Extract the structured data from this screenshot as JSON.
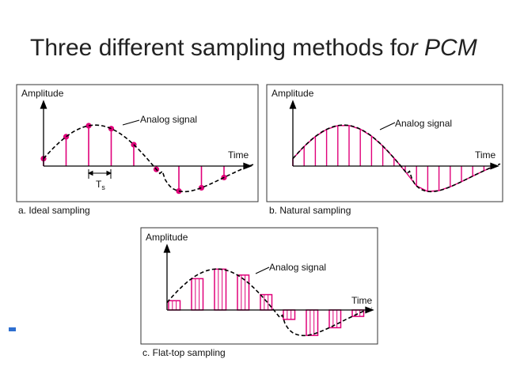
{
  "slide": {
    "title_main": "Three different sampling methods fo",
    "title_italic": "r PCM"
  },
  "panels": {
    "ideal": {
      "amplitude": "Amplitude",
      "time": "Time",
      "analog": "Analog signal",
      "period_main": "T",
      "period_sub": "s",
      "caption": "a. Ideal sampling"
    },
    "natural": {
      "amplitude": "Amplitude",
      "time": "Time",
      "analog": "Analog signal",
      "caption": "b. Natural sampling"
    },
    "flattop": {
      "amplitude": "Amplitude",
      "time": "Time",
      "analog": "Analog signal",
      "caption": "c. Flat-top sampling"
    }
  },
  "colors": {
    "sample": "#e0007a",
    "signal": "#000000",
    "frame": "#333333",
    "bullet": "#2e6fd0"
  }
}
